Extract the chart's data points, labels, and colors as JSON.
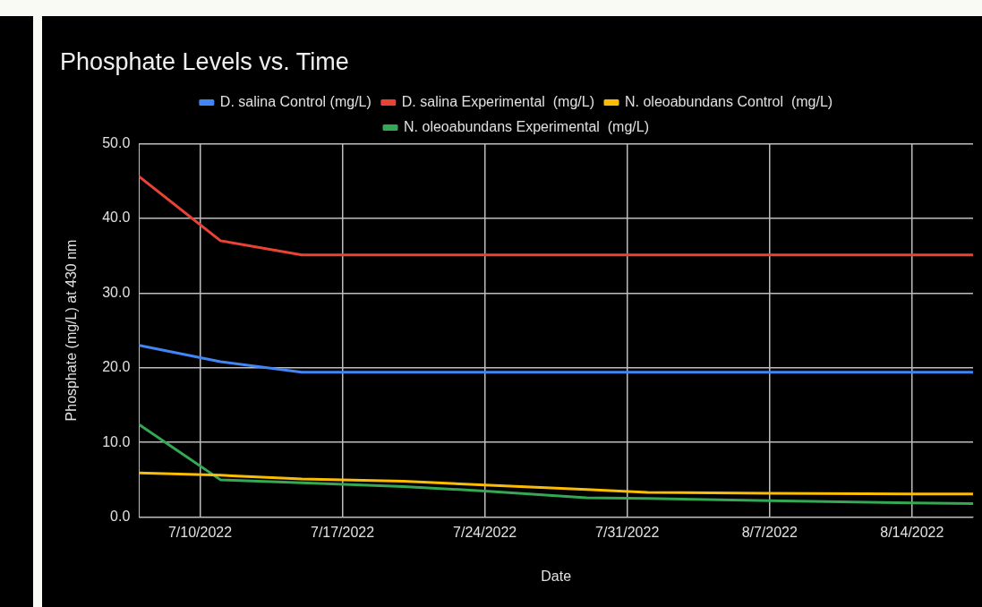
{
  "chart_data": {
    "type": "line",
    "title": "Phosphate Levels vs. Time",
    "xlabel": "Date",
    "ylabel": "Phosphate (mg/L) at 430 nm",
    "x": [
      "2022-07-07",
      "2022-07-11",
      "2022-07-15",
      "2022-07-20",
      "2022-07-24",
      "2022-07-29",
      "2022-08-01",
      "2022-08-07",
      "2022-08-14",
      "2022-08-17"
    ],
    "series": [
      {
        "name": "D. salina Control (mg/L)",
        "color": "#4285f4",
        "values": [
          23.0,
          20.8,
          19.4,
          19.4,
          19.4,
          19.4,
          19.4,
          19.4,
          19.4,
          19.4
        ]
      },
      {
        "name": "D. salina Experimental  (mg/L)",
        "color": "#ea4335",
        "values": [
          45.6,
          37.0,
          35.1,
          35.1,
          35.1,
          35.1,
          35.1,
          35.1,
          35.1,
          35.1
        ]
      },
      {
        "name": "N. oleoabundans Control  (mg/L)",
        "color": "#fbbc04",
        "values": [
          5.9,
          5.6,
          5.1,
          4.8,
          4.3,
          3.7,
          3.3,
          3.2,
          3.1,
          3.1
        ]
      },
      {
        "name": "N. oleoabundans Experimental  (mg/L)",
        "color": "#34a853",
        "values": [
          12.4,
          5.0,
          4.6,
          4.1,
          3.5,
          2.6,
          2.5,
          2.2,
          1.9,
          1.8
        ]
      }
    ],
    "xlim": [
      "2022-07-07",
      "2022-08-17"
    ],
    "xticks": [
      {
        "value": "2022-07-10",
        "label": "7/10/2022"
      },
      {
        "value": "2022-07-17",
        "label": "7/17/2022"
      },
      {
        "value": "2022-07-24",
        "label": "7/24/2022"
      },
      {
        "value": "2022-07-31",
        "label": "7/31/2022"
      },
      {
        "value": "2022-08-07",
        "label": "8/7/2022"
      },
      {
        "value": "2022-08-14",
        "label": "8/14/2022"
      }
    ],
    "ylim": [
      0,
      50
    ],
    "yticks": [
      {
        "value": 0,
        "label": "0.0"
      },
      {
        "value": 10,
        "label": "10.0"
      },
      {
        "value": 20,
        "label": "20.0"
      },
      {
        "value": 30,
        "label": "30.0"
      },
      {
        "value": 40,
        "label": "40.0"
      },
      {
        "value": 50,
        "label": "50.0"
      }
    ],
    "grid": true,
    "legend": "top",
    "marker": "none",
    "line_style": "solid"
  }
}
